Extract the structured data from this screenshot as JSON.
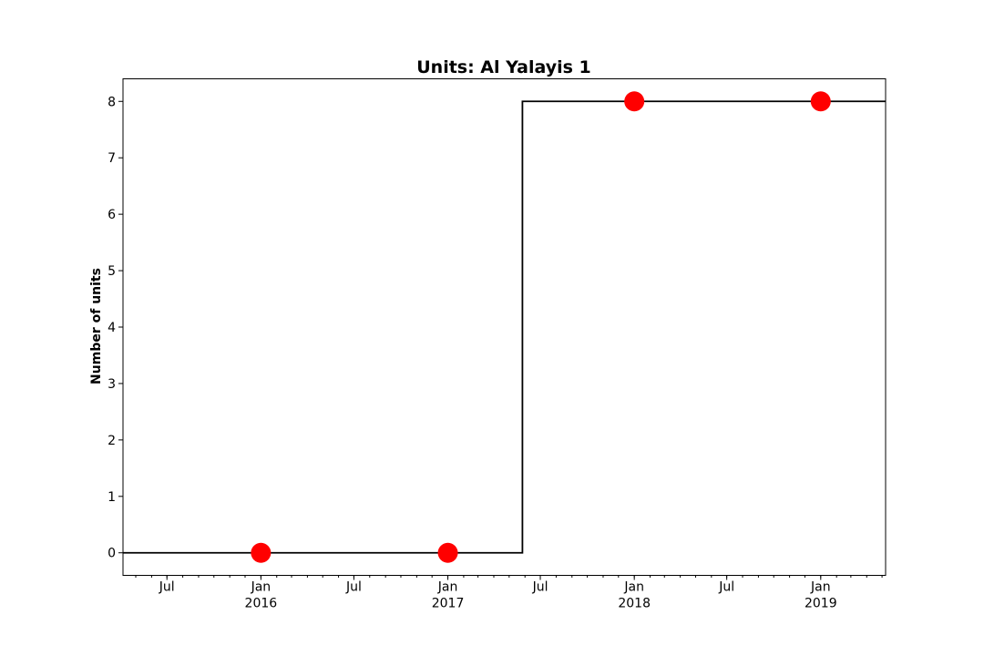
{
  "chart_data": {
    "type": "line",
    "title": "Units: Al Yalayis 1",
    "xlabel": "",
    "ylabel": "Number of units",
    "xlim": [
      "2015-04-06",
      "2019-05-08"
    ],
    "ylim": [
      -0.4,
      8.4
    ],
    "yticks": [
      0,
      1,
      2,
      3,
      4,
      5,
      6,
      7,
      8
    ],
    "xticks": [
      {
        "date": "2015-07-01",
        "label": "Jul",
        "sublabel": ""
      },
      {
        "date": "2016-01-01",
        "label": "Jan",
        "sublabel": "2016"
      },
      {
        "date": "2016-07-01",
        "label": "Jul",
        "sublabel": ""
      },
      {
        "date": "2017-01-01",
        "label": "Jan",
        "sublabel": "2017"
      },
      {
        "date": "2017-07-01",
        "label": "Jul",
        "sublabel": ""
      },
      {
        "date": "2018-01-01",
        "label": "Jan",
        "sublabel": "2018"
      },
      {
        "date": "2018-07-01",
        "label": "Jul",
        "sublabel": ""
      },
      {
        "date": "2019-01-01",
        "label": "Jan",
        "sublabel": "2019"
      }
    ],
    "series": [
      {
        "kind": "step",
        "color": "#000000",
        "points": [
          {
            "x": "2015-04-06",
            "y": 0
          },
          {
            "x": "2017-05-27",
            "y": 0
          },
          {
            "x": "2017-05-27",
            "y": 8
          },
          {
            "x": "2019-05-08",
            "y": 8
          }
        ]
      },
      {
        "kind": "markers",
        "color": "#ff0000",
        "points": [
          {
            "x": "2016-01-01",
            "y": 0
          },
          {
            "x": "2017-01-01",
            "y": 0
          },
          {
            "x": "2018-01-01",
            "y": 8
          },
          {
            "x": "2019-01-01",
            "y": 8
          }
        ]
      }
    ],
    "grid": false,
    "legend": "none"
  }
}
